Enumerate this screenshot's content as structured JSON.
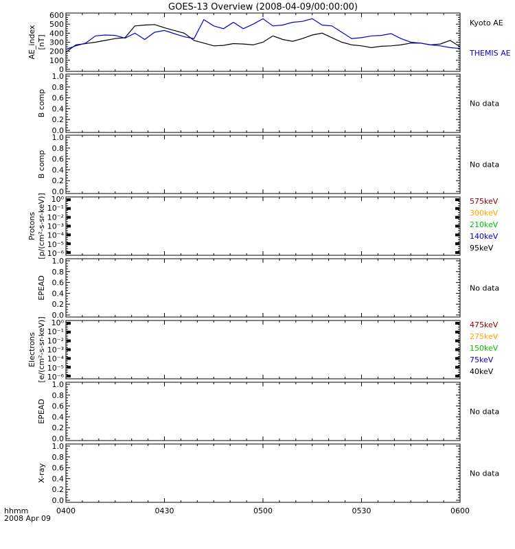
{
  "title": "GOES-13 Overview (2008-04-09/00:00:00)",
  "time_axis": {
    "ticks": [
      "0400",
      "0430",
      "0500",
      "0530",
      "0600"
    ],
    "format_label": "hhmm",
    "date_label": "2008 Apr 09"
  },
  "colors": {
    "kyoto": "#000000",
    "themis": "#0000cc",
    "ch575": "#8b0000",
    "ch300": "#ffa500",
    "ch210": "#00c000",
    "ch140": "#0000cc",
    "ch95": "#000000"
  },
  "no_data_label": "No data",
  "panels": [
    {
      "ylabel": [
        "AE_index",
        "[nT]"
      ],
      "ticks": [
        "600",
        "500",
        "400",
        "300",
        "200",
        "100",
        "0"
      ],
      "legend": [
        "Kyoto AE",
        "THEMIS AE"
      ]
    },
    {
      "ylabel": [
        "B comp"
      ],
      "ticks": [
        "1.0",
        "0.8",
        "0.6",
        "0.4",
        "0.2",
        "0.0"
      ],
      "legend": [
        "No data"
      ]
    },
    {
      "ylabel": [
        "B comp"
      ],
      "ticks": [
        "1.0",
        "0.8",
        "0.6",
        "0.4",
        "0.2",
        "0.0"
      ],
      "legend": [
        "No data"
      ]
    },
    {
      "ylabel": [
        "Protons",
        "[p/(cm²-s-sr-keV)]"
      ],
      "ticks": [
        "10⁰",
        "10⁻¹",
        "10⁻²",
        "10⁻³",
        "10⁻⁴",
        "10⁻⁵",
        "10⁻⁶"
      ],
      "legend": [
        "575keV",
        "300keV",
        "210keV",
        "140keV",
        "95keV"
      ]
    },
    {
      "ylabel": [
        "EPEAD"
      ],
      "ticks": [
        "1.0",
        "0.8",
        "0.6",
        "0.4",
        "0.2",
        "0.0"
      ],
      "legend": [
        "No data"
      ]
    },
    {
      "ylabel": [
        "Electrons",
        "[e/(cm²-s-sr-keV)]"
      ],
      "ticks": [
        "10⁰",
        "10⁻¹",
        "10⁻²",
        "10⁻³",
        "10⁻⁴",
        "10⁻⁵",
        "10⁻⁶"
      ],
      "legend": [
        "475keV",
        "275keV",
        "150keV",
        "75keV",
        "40keV"
      ]
    },
    {
      "ylabel": [
        "EPEAD"
      ],
      "ticks": [
        "1.0",
        "0.8",
        "0.6",
        "0.4",
        "0.2",
        "0.0"
      ],
      "legend": [
        "No data"
      ]
    },
    {
      "ylabel": [
        "X-ray"
      ],
      "ticks": [
        "1.0",
        "0.8",
        "0.6",
        "0.4",
        "0.2",
        "0.0"
      ],
      "legend": [
        "No data"
      ]
    }
  ],
  "chart_data": {
    "type": "line",
    "title": "GOES-13 Overview (2008-04-09/00:00:00)",
    "x_unit": "hhmm",
    "xlim": [
      "0400",
      "0600"
    ],
    "ylim": [
      0,
      600
    ],
    "ylabel": "AE_index [nT]",
    "x": [
      "0400",
      "0403",
      "0406",
      "0409",
      "0412",
      "0415",
      "0418",
      "0421",
      "0424",
      "0427",
      "0430",
      "0433",
      "0436",
      "0439",
      "0442",
      "0445",
      "0448",
      "0451",
      "0454",
      "0457",
      "0500",
      "0503",
      "0506",
      "0509",
      "0512",
      "0515",
      "0518",
      "0521",
      "0524",
      "0527",
      "0530",
      "0533",
      "0536",
      "0539",
      "0542",
      "0545",
      "0548",
      "0551",
      "0554",
      "0557",
      "0600"
    ],
    "series": [
      {
        "name": "Kyoto AE",
        "values": [
          190,
          270,
          285,
          300,
          320,
          340,
          350,
          480,
          490,
          495,
          460,
          430,
          400,
          320,
          290,
          260,
          265,
          285,
          280,
          270,
          300,
          370,
          330,
          310,
          340,
          380,
          400,
          350,
          300,
          270,
          260,
          240,
          255,
          260,
          270,
          290,
          290,
          270,
          280,
          320,
          250
        ]
      },
      {
        "name": "THEMIS AE",
        "values": [
          220,
          260,
          290,
          370,
          380,
          375,
          345,
          400,
          330,
          410,
          430,
          395,
          360,
          340,
          550,
          480,
          450,
          520,
          450,
          500,
          560,
          480,
          490,
          520,
          530,
          560,
          490,
          480,
          410,
          340,
          350,
          370,
          375,
          395,
          340,
          300,
          290,
          270,
          260,
          240,
          230
        ]
      }
    ],
    "legend_position": "right",
    "grid": false
  }
}
